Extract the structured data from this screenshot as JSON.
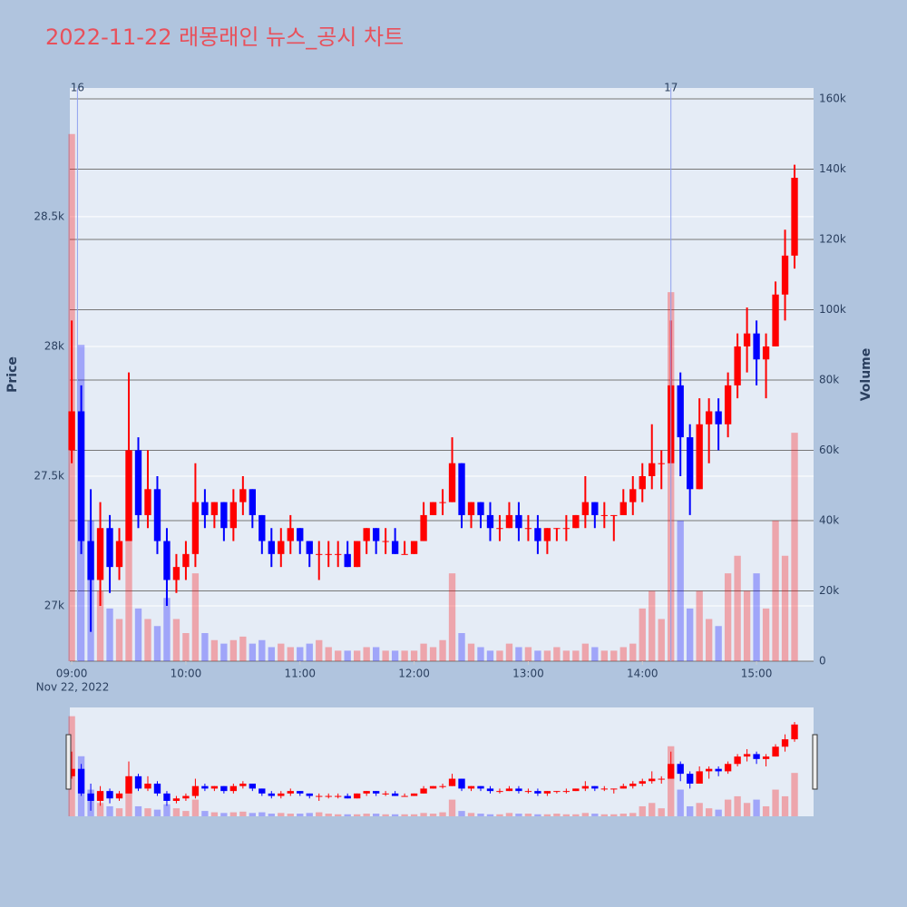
{
  "chart_data": {
    "type": "candlestick",
    "title": "2022-11-22 래몽래인 뉴스_공시 차트",
    "y_label": "Price",
    "y2_label": "Volume",
    "x_date_label": "Nov 22, 2022",
    "increasing_color": "#ff0000",
    "decreasing_color": "#0000ff",
    "x": [
      "2022-11-22 09:00",
      "2022-11-22 09:05",
      "2022-11-22 09:10",
      "2022-11-22 09:15",
      "2022-11-22 09:20",
      "2022-11-22 09:25",
      "2022-11-22 09:30",
      "2022-11-22 09:35",
      "2022-11-22 09:40",
      "2022-11-22 09:45",
      "2022-11-22 09:50",
      "2022-11-22 09:55",
      "2022-11-22 10:00",
      "2022-11-22 10:05",
      "2022-11-22 10:10",
      "2022-11-22 10:15",
      "2022-11-22 10:20",
      "2022-11-22 10:25",
      "2022-11-22 10:30",
      "2022-11-22 10:35",
      "2022-11-22 10:40",
      "2022-11-22 10:45",
      "2022-11-22 10:50",
      "2022-11-22 10:55",
      "2022-11-22 11:00",
      "2022-11-22 11:05",
      "2022-11-22 11:10",
      "2022-11-22 11:15",
      "2022-11-22 11:20",
      "2022-11-22 11:25",
      "2022-11-22 11:30",
      "2022-11-22 11:35",
      "2022-11-22 11:40",
      "2022-11-22 11:45",
      "2022-11-22 11:50",
      "2022-11-22 11:55",
      "2022-11-22 12:00",
      "2022-11-22 12:05",
      "2022-11-22 12:10",
      "2022-11-22 12:15",
      "2022-11-22 12:20",
      "2022-11-22 12:25",
      "2022-11-22 12:30",
      "2022-11-22 12:35",
      "2022-11-22 12:40",
      "2022-11-22 12:45",
      "2022-11-22 12:50",
      "2022-11-22 12:55",
      "2022-11-22 13:00",
      "2022-11-22 13:05",
      "2022-11-22 13:10",
      "2022-11-22 13:15",
      "2022-11-22 13:20",
      "2022-11-22 13:25",
      "2022-11-22 13:30",
      "2022-11-22 13:35",
      "2022-11-22 13:40",
      "2022-11-22 13:45",
      "2022-11-22 13:50",
      "2022-11-22 13:55",
      "2022-11-22 14:00",
      "2022-11-22 14:05",
      "2022-11-22 14:10",
      "2022-11-22 14:15",
      "2022-11-22 14:20",
      "2022-11-22 14:25",
      "2022-11-22 14:30",
      "2022-11-22 14:35",
      "2022-11-22 14:40",
      "2022-11-22 14:45",
      "2022-11-22 14:50",
      "2022-11-22 14:55",
      "2022-11-22 15:00",
      "2022-11-22 15:05",
      "2022-11-22 15:10",
      "2022-11-22 15:15",
      "2022-11-22 15:20"
    ],
    "open": [
      27600,
      27750,
      27250,
      27100,
      27300,
      27150,
      27250,
      27600,
      27350,
      27450,
      27250,
      27100,
      27150,
      27200,
      27400,
      27350,
      27400,
      27300,
      27400,
      27450,
      27350,
      27250,
      27200,
      27250,
      27300,
      27250,
      27200,
      27200,
      27200,
      27200,
      27150,
      27250,
      27300,
      27250,
      27250,
      27200,
      27200,
      27250,
      27350,
      27400,
      27400,
      27550,
      27350,
      27400,
      27350,
      27300,
      27300,
      27350,
      27300,
      27300,
      27250,
      27300,
      27300,
      27300,
      27350,
      27400,
      27350,
      27350,
      27350,
      27400,
      27450,
      27500,
      27550,
      27550,
      27850,
      27650,
      27450,
      27700,
      27750,
      27700,
      27850,
      28000,
      28050,
      27950,
      28000,
      28200,
      28350
    ],
    "high": [
      28100,
      27850,
      27450,
      27400,
      27350,
      27300,
      27900,
      27650,
      27600,
      27500,
      27300,
      27200,
      27250,
      27550,
      27450,
      27400,
      27400,
      27450,
      27500,
      27450,
      27350,
      27300,
      27300,
      27350,
      27300,
      27250,
      27250,
      27250,
      27250,
      27250,
      27250,
      27300,
      27300,
      27300,
      27300,
      27250,
      27250,
      27400,
      27400,
      27450,
      27650,
      27550,
      27400,
      27400,
      27400,
      27350,
      27400,
      27400,
      27350,
      27350,
      27300,
      27300,
      27350,
      27350,
      27500,
      27400,
      27400,
      27350,
      27450,
      27500,
      27550,
      27700,
      27600,
      28100,
      27900,
      27700,
      27800,
      27800,
      27800,
      27900,
      28050,
      28150,
      28100,
      28050,
      28250,
      28450,
      28700
    ],
    "low": [
      27550,
      27200,
      26900,
      27000,
      27050,
      27100,
      27250,
      27300,
      27300,
      27200,
      27000,
      27050,
      27100,
      27150,
      27300,
      27300,
      27250,
      27250,
      27350,
      27300,
      27200,
      27150,
      27150,
      27200,
      27200,
      27150,
      27100,
      27150,
      27150,
      27150,
      27150,
      27200,
      27200,
      27200,
      27200,
      27200,
      27200,
      27250,
      27350,
      27350,
      27400,
      27300,
      27300,
      27300,
      27250,
      27250,
      27300,
      27250,
      27250,
      27200,
      27200,
      27250,
      27250,
      27300,
      27300,
      27300,
      27300,
      27250,
      27350,
      27350,
      27400,
      27450,
      27450,
      27550,
      27500,
      27350,
      27450,
      27550,
      27600,
      27650,
      27800,
      27900,
      27850,
      27800,
      28000,
      28100,
      28300
    ],
    "close": [
      27750,
      27250,
      27100,
      27300,
      27150,
      27250,
      27600,
      27350,
      27450,
      27250,
      27100,
      27150,
      27200,
      27400,
      27350,
      27400,
      27300,
      27400,
      27450,
      27350,
      27250,
      27200,
      27250,
      27300,
      27250,
      27200,
      27200,
      27200,
      27200,
      27150,
      27250,
      27300,
      27250,
      27250,
      27200,
      27200,
      27250,
      27350,
      27400,
      27400,
      27550,
      27350,
      27400,
      27350,
      27300,
      27300,
      27350,
      27300,
      27300,
      27250,
      27300,
      27300,
      27300,
      27350,
      27400,
      27350,
      27350,
      27350,
      27400,
      27450,
      27500,
      27550,
      27550,
      27850,
      27650,
      27450,
      27700,
      27750,
      27700,
      27850,
      28000,
      28050,
      27950,
      28000,
      28200,
      28350,
      28650
    ],
    "volume": [
      150000,
      90000,
      40000,
      20000,
      15000,
      12000,
      60000,
      15000,
      12000,
      10000,
      18000,
      12000,
      8000,
      25000,
      8000,
      6000,
      5000,
      6000,
      7000,
      5000,
      6000,
      4000,
      5000,
      4000,
      4000,
      5000,
      6000,
      4000,
      3000,
      3000,
      3000,
      4000,
      4000,
      3000,
      3000,
      3000,
      3000,
      5000,
      4000,
      6000,
      25000,
      8000,
      5000,
      4000,
      3000,
      3000,
      5000,
      4000,
      4000,
      3000,
      3000,
      4000,
      3000,
      3000,
      5000,
      4000,
      3000,
      3000,
      4000,
      5000,
      15000,
      20000,
      12000,
      105000,
      40000,
      15000,
      20000,
      12000,
      10000,
      25000,
      30000,
      20000,
      25000,
      15000,
      40000,
      30000,
      65000
    ],
    "xlim": [
      "2022-11-22 08:59",
      "2022-11-22 15:30"
    ],
    "xticks": [
      {
        "value": "2022-11-22 09:00",
        "label": "09:00"
      },
      {
        "value": "2022-11-22 10:00",
        "label": "10:00"
      },
      {
        "value": "2022-11-22 11:00",
        "label": "11:00"
      },
      {
        "value": "2022-11-22 12:00",
        "label": "12:00"
      },
      {
        "value": "2022-11-22 13:00",
        "label": "13:00"
      },
      {
        "value": "2022-11-22 14:00",
        "label": "14:00"
      },
      {
        "value": "2022-11-22 15:00",
        "label": "15:00"
      }
    ],
    "ylim": [
      26787,
      28996
    ],
    "yticks": [
      {
        "value": 27000,
        "label": "27k"
      },
      {
        "value": 27500,
        "label": "27.5k"
      },
      {
        "value": 28000,
        "label": "28k"
      },
      {
        "value": 28500,
        "label": "28.5k"
      }
    ],
    "y2lim": [
      0,
      163100
    ],
    "y2ticks": [
      0,
      {
        "value": 20000,
        "label": "20k"
      },
      {
        "value": 40000,
        "label": "40k"
      },
      {
        "value": 60000,
        "label": "60k"
      },
      {
        "value": 80000,
        "label": "80k"
      },
      {
        "value": 100000,
        "label": "100k"
      },
      {
        "value": 120000,
        "label": "120k"
      },
      {
        "value": 140000,
        "label": "140k"
      },
      {
        "value": 160000,
        "label": "160k"
      }
    ],
    "annotations": [
      {
        "x": "2022-11-22 09:03",
        "label": "16"
      },
      {
        "x": "2022-11-22 14:15",
        "label": "17"
      }
    ]
  }
}
